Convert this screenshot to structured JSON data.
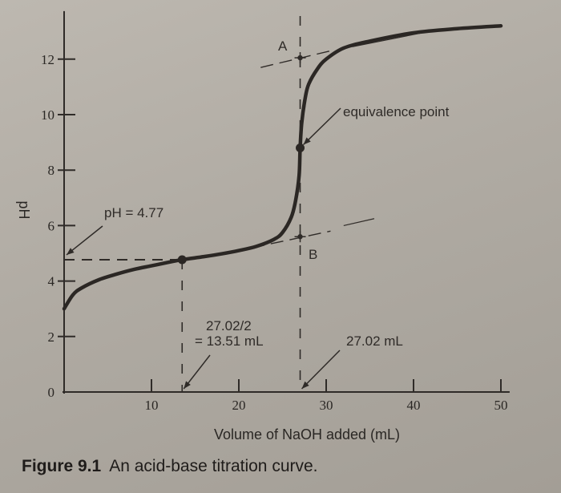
{
  "caption": {
    "label": "Figure 9.1",
    "text": "An acid-base titration curve."
  },
  "colors": {
    "background": "#b3aea6",
    "curve": "#2b2724",
    "ink": "#2f2b28"
  },
  "chart_data": {
    "type": "line",
    "title": "",
    "xlabel": "Volume of NaOH added (mL)",
    "ylabel": "pH",
    "xlim": [
      0,
      51
    ],
    "ylim": [
      0,
      13.5
    ],
    "xticks": [
      10,
      20,
      30,
      40,
      50
    ],
    "yticks": [
      0,
      2,
      4,
      6,
      8,
      10,
      12
    ],
    "grid": false,
    "series": [
      {
        "x": [
          0,
          1,
          2,
          4,
          6,
          8,
          10,
          12,
          13.51,
          16,
          18,
          20,
          22,
          24,
          25,
          26,
          26.5,
          26.9,
          27.02,
          27.2,
          27.6,
          28,
          29,
          30,
          32,
          35,
          40,
          45,
          50
        ],
        "y": [
          3.0,
          3.5,
          3.75,
          4.05,
          4.25,
          4.42,
          4.55,
          4.68,
          4.77,
          4.88,
          4.98,
          5.1,
          5.25,
          5.5,
          5.75,
          6.3,
          6.9,
          7.8,
          8.8,
          9.7,
          10.6,
          11.1,
          11.65,
          12.0,
          12.4,
          12.65,
          12.95,
          13.1,
          13.2
        ]
      }
    ],
    "points": [
      {
        "name": "half-equivalence",
        "x": 13.51,
        "y": 4.77
      },
      {
        "name": "equivalence",
        "x": 27.02,
        "y": 8.8
      },
      {
        "name": "A",
        "x": 27.02,
        "y": 12.05
      },
      {
        "name": "B",
        "x": 27.02,
        "y": 5.6
      }
    ],
    "annotations": {
      "ph_label": "pH = 4.77",
      "half_label_1": "27.02/2",
      "half_label_2": "= 13.51 mL",
      "equiv_label": "equivalence point",
      "vol_label": "27.02 mL",
      "point_a": "A",
      "point_b": "B"
    }
  }
}
